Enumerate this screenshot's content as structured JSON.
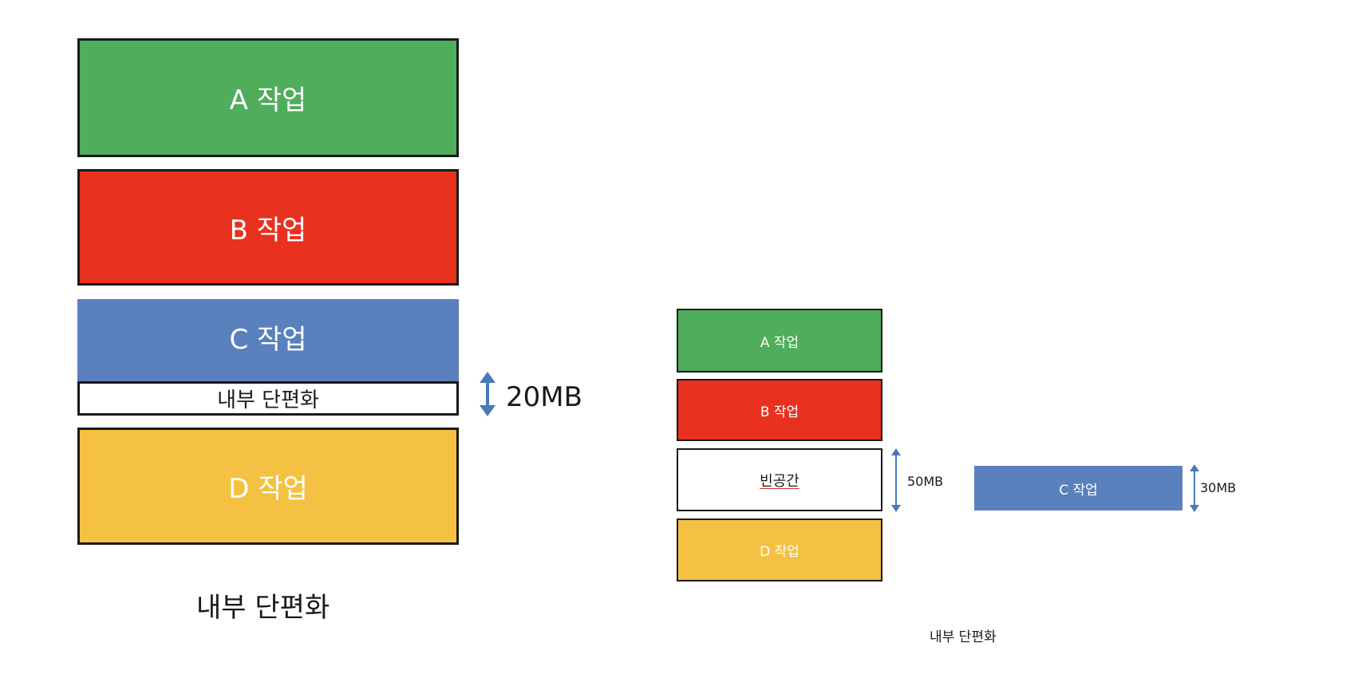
{
  "colors": {
    "job_a": "#4fad5b",
    "job_b": "#e8311f",
    "job_c": "#5a80bd",
    "job_d": "#f5c142",
    "empty": "#ffffff",
    "arrow": "#4a78b8",
    "border": "#1a1a1a"
  },
  "left": {
    "job_a": "A 작업",
    "job_b": "B 작업",
    "job_c": "C 작업",
    "fragment": "내부 단편화",
    "fragment_size": "20MB",
    "job_d": "D 작업",
    "caption": "내부 단편화"
  },
  "right": {
    "job_a": "A 작업",
    "job_b": "B 작업",
    "empty": "빈공간",
    "empty_size": "50MB",
    "job_d": "D 작업",
    "job_c": "C 작업",
    "job_c_size": "30MB",
    "caption": "내부 단편화"
  }
}
